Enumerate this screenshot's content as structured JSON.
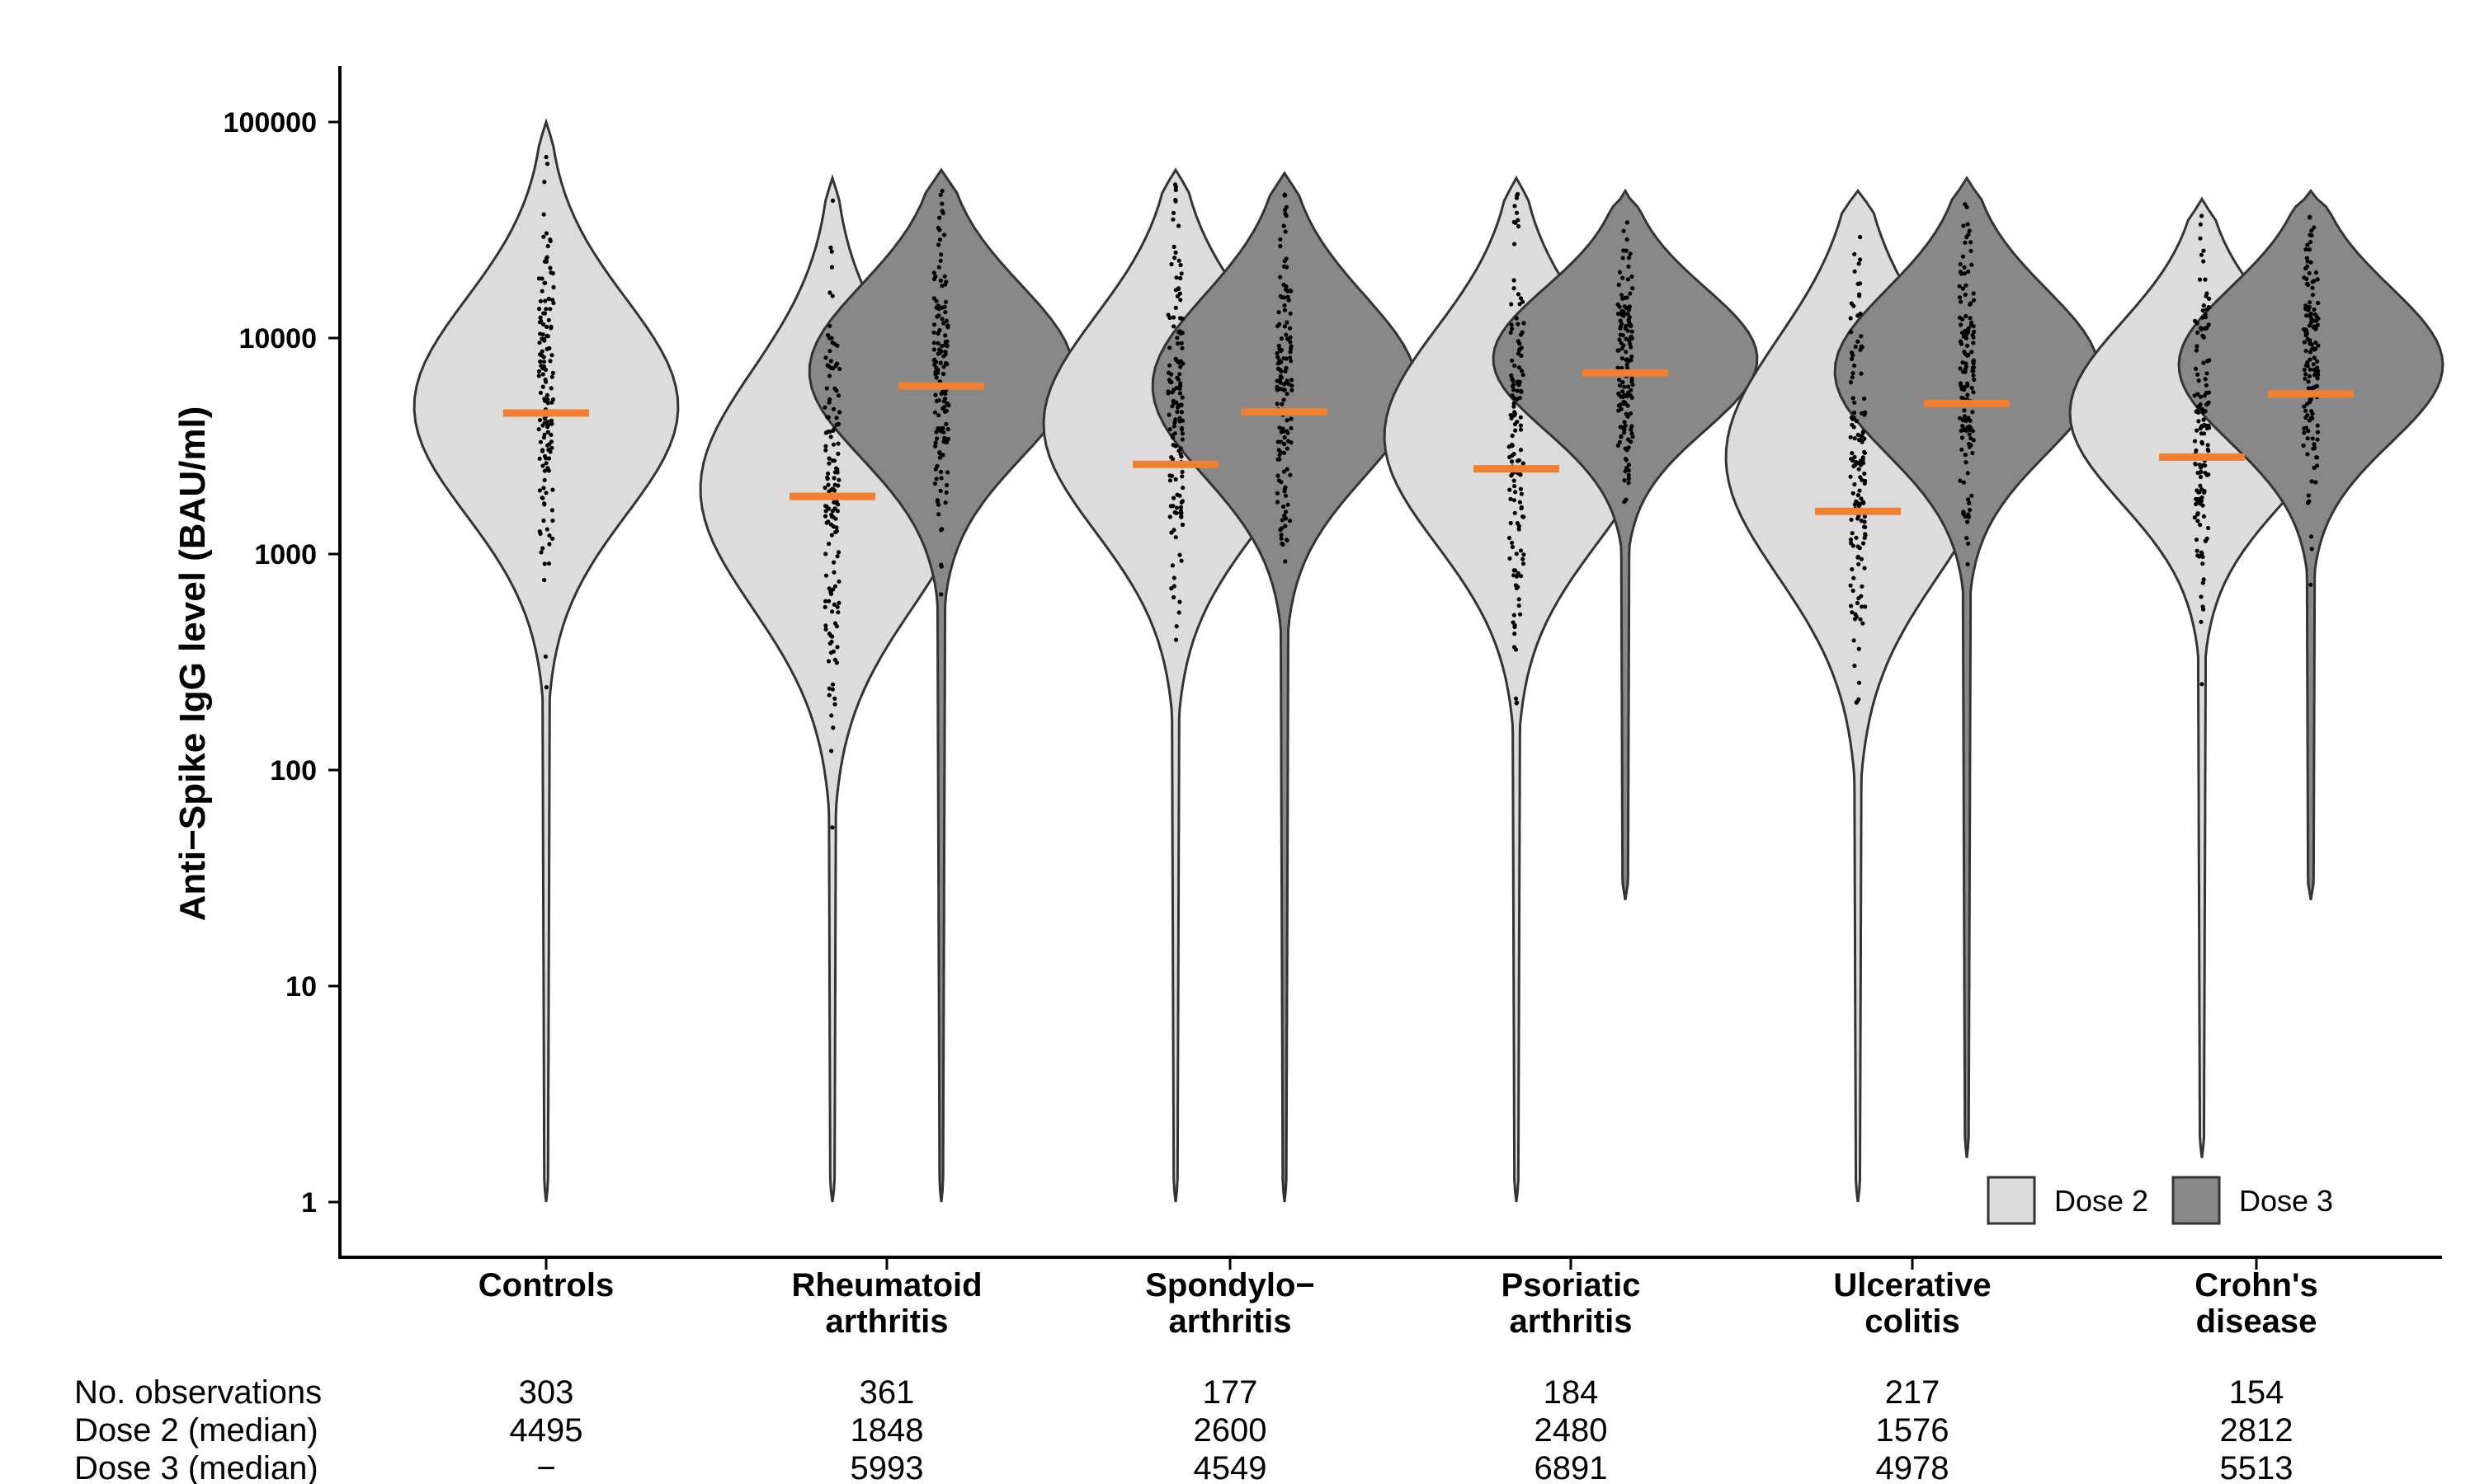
{
  "chart_data": {
    "type": "violin",
    "ylabel": "Anti−Spike IgG level (BAU/ml)",
    "xlabel": "",
    "y_scale": "log10",
    "ylim": [
      1,
      100000
    ],
    "yticks": [
      "1",
      "10",
      "100",
      "1000",
      "10000",
      "100000"
    ],
    "categories": [
      {
        "line1": "Controls",
        "line2": ""
      },
      {
        "line1": "Rheumatoid",
        "line2": "arthritis"
      },
      {
        "line1": "Spondylo−",
        "line2": "arthritis"
      },
      {
        "line1": "Psoriatic",
        "line2": "arthritis"
      },
      {
        "line1": "Ulcerative",
        "line2": "colitis"
      },
      {
        "line1": "Crohn's",
        "line2": "disease"
      }
    ],
    "series": [
      {
        "name": "Dose 2",
        "color": "#dcdcdc",
        "medians": [
          4495,
          1848,
          2600,
          2480,
          1576,
          2812
        ]
      },
      {
        "name": "Dose 3",
        "color": "#888888",
        "medians": [
          null,
          5993,
          4549,
          6891,
          4978,
          5513
        ]
      }
    ],
    "median_color": "#f08030",
    "distributions": [
      {
        "category": "Controls",
        "series": "Dose 2",
        "min": 1,
        "max": 100000,
        "mode": 4800,
        "sigma": 0.5
      },
      {
        "category": "Rheumatoid arthritis",
        "series": "Dose 2",
        "min": 1,
        "max": 55000,
        "mode": 2000,
        "sigma": 0.55
      },
      {
        "category": "Rheumatoid arthritis",
        "series": "Dose 3",
        "min": 1,
        "max": 60000,
        "mode": 7000,
        "sigma": 0.4
      },
      {
        "category": "Spondylo−arthritis",
        "series": "Dose 2",
        "min": 1,
        "max": 60000,
        "mode": 4000,
        "sigma": 0.5
      },
      {
        "category": "Spondylo−arthritis",
        "series": "Dose 3",
        "min": 1,
        "max": 58000,
        "mode": 6000,
        "sigma": 0.42
      },
      {
        "category": "Psoriatic arthritis",
        "series": "Dose 2",
        "min": 1,
        "max": 55000,
        "mode": 3500,
        "sigma": 0.5
      },
      {
        "category": "Psoriatic arthritis",
        "series": "Dose 3",
        "min": 25,
        "max": 48000,
        "mode": 8000,
        "sigma": 0.33
      },
      {
        "category": "Ulcerative colitis",
        "series": "Dose 2",
        "min": 1,
        "max": 48000,
        "mode": 2800,
        "sigma": 0.55
      },
      {
        "category": "Ulcerative colitis",
        "series": "Dose 3",
        "min": 1.6,
        "max": 55000,
        "mode": 7000,
        "sigma": 0.38
      },
      {
        "category": "Crohn's disease",
        "series": "Dose 2",
        "min": 1.6,
        "max": 44000,
        "mode": 4500,
        "sigma": 0.42
      },
      {
        "category": "Crohn's disease",
        "series": "Dose 3",
        "min": 25,
        "max": 48000,
        "mode": 7500,
        "sigma": 0.36
      }
    ],
    "legend": {
      "position": "bottom-right",
      "items": [
        "Dose 2",
        "Dose 3"
      ]
    },
    "grid": false,
    "table": {
      "row_labels": [
        "No. observations",
        "Dose 2 (median)",
        "Dose 3 (median)"
      ],
      "rows": [
        [
          "303",
          "361",
          "177",
          "184",
          "217",
          "154"
        ],
        [
          "4495",
          "1848",
          "2600",
          "2480",
          "1576",
          "2812"
        ],
        [
          "−",
          "5993",
          "4549",
          "6891",
          "4978",
          "5513"
        ]
      ]
    }
  }
}
